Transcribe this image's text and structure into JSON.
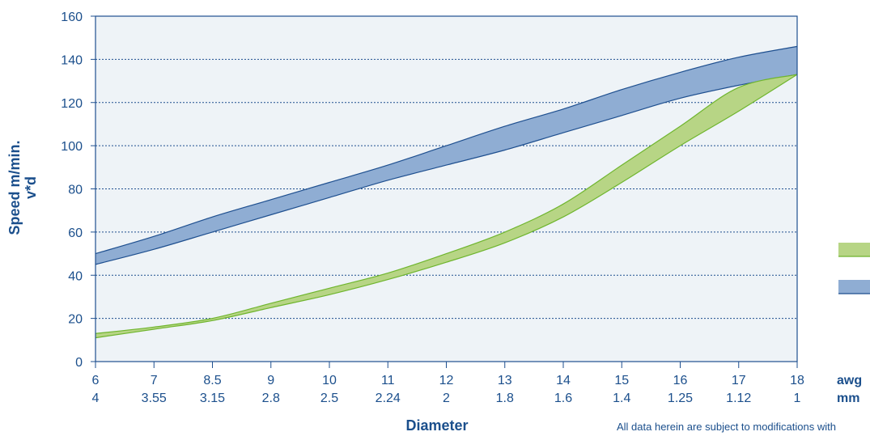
{
  "chart_data": {
    "type": "area",
    "ylabel_line1": "Speed m/min.",
    "ylabel_line2": "v*d",
    "xlabel": "Diameter",
    "ylim": [
      0,
      160
    ],
    "yticks": [
      0,
      20,
      40,
      60,
      80,
      100,
      120,
      140,
      160
    ],
    "x_awg": [
      "6",
      "7",
      "8.5",
      "9",
      "10",
      "11",
      "12",
      "13",
      "14",
      "15",
      "16",
      "17",
      "18"
    ],
    "x_mm": [
      "4",
      "3.55",
      "3.15",
      "2.8",
      "2.5",
      "2.24",
      "2",
      "1.8",
      "1.6",
      "1.4",
      "1.25",
      "1.12",
      "1"
    ],
    "x_row_labels": [
      "awg",
      "mm"
    ],
    "grid": true,
    "series": [
      {
        "color": "#8fadd3",
        "stroke": "#1e4f8f",
        "upper": [
          50,
          58,
          67,
          75,
          83,
          91,
          100,
          109,
          117,
          126,
          134,
          141,
          146
        ],
        "lower": [
          45,
          52,
          60,
          68,
          76,
          84,
          91,
          98,
          106,
          114,
          122,
          128,
          133
        ]
      },
      {
        "color": "#b7d585",
        "stroke": "#6fb52e",
        "upper": [
          13,
          16,
          20,
          27,
          34,
          41,
          50,
          60,
          73,
          91,
          109,
          127,
          133
        ],
        "lower": [
          11,
          15,
          19,
          25,
          31,
          38,
          46,
          55,
          67,
          83,
          100,
          116,
          133
        ]
      }
    ],
    "footnote": "All data herein are subject to modifications with"
  }
}
